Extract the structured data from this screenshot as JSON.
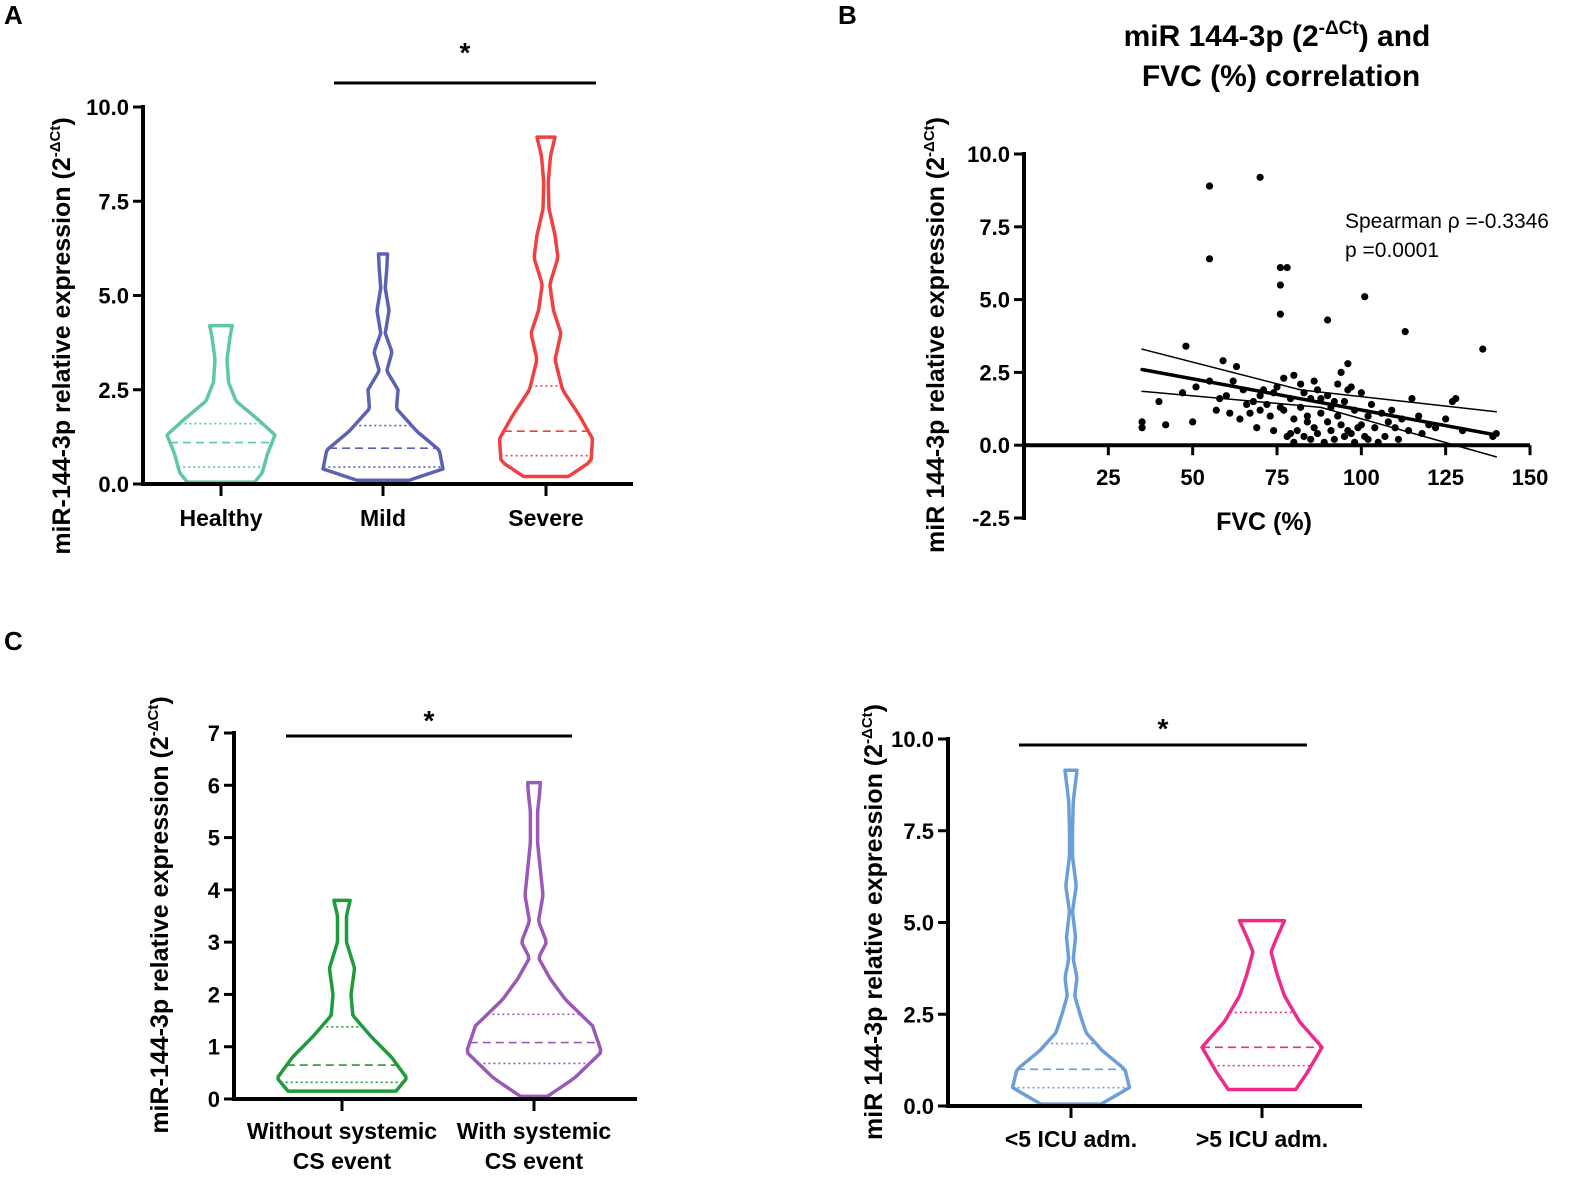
{
  "panel_labels": [
    "A",
    "B",
    "C"
  ],
  "chart_data": [
    {
      "id": "A",
      "type": "violin",
      "ylabel": "miR-144-3p relative expression (2",
      "ylabel_sup": "-ΔCt",
      "ylabel_end": ")",
      "ylim": [
        0,
        10
      ],
      "yticks": [
        "0.0",
        "2.5",
        "5.0",
        "7.5",
        "10.0"
      ],
      "ytick_values": [
        0,
        2.5,
        5,
        7.5,
        10
      ],
      "categories": [
        "Healthy",
        "Mild",
        "Severe"
      ],
      "significance": "*",
      "significance_between": [
        "Mild",
        "Severe"
      ],
      "series": [
        {
          "name": "Healthy",
          "color": "#5ec8a0",
          "min": 0.05,
          "max": 4.2,
          "median": 1.1,
          "q1": 0.45,
          "q3": 1.6,
          "density": [
            [
              0.05,
              0.45
            ],
            [
              0.3,
              0.55
            ],
            [
              0.8,
              0.62
            ],
            [
              1.3,
              0.72
            ],
            [
              1.7,
              0.5
            ],
            [
              2.2,
              0.2
            ],
            [
              2.7,
              0.1
            ],
            [
              3.3,
              0.08
            ],
            [
              3.9,
              0.12
            ],
            [
              4.2,
              0.15
            ]
          ]
        },
        {
          "name": "Mild",
          "color": "#5a62b4",
          "min": 0.1,
          "max": 6.1,
          "median": 0.95,
          "q1": 0.45,
          "q3": 1.55,
          "density": [
            [
              0.1,
              0.35
            ],
            [
              0.4,
              0.8
            ],
            [
              0.9,
              0.75
            ],
            [
              1.4,
              0.45
            ],
            [
              2.0,
              0.18
            ],
            [
              2.5,
              0.2
            ],
            [
              3.0,
              0.05
            ],
            [
              3.5,
              0.12
            ],
            [
              4.0,
              0.03
            ],
            [
              4.6,
              0.08
            ],
            [
              5.2,
              0.03
            ],
            [
              5.7,
              0.05
            ],
            [
              6.1,
              0.06
            ]
          ]
        },
        {
          "name": "Severe",
          "color": "#f04040",
          "min": 0.2,
          "max": 9.2,
          "median": 1.4,
          "q1": 0.75,
          "q3": 2.6,
          "density": [
            [
              0.2,
              0.3
            ],
            [
              0.6,
              0.6
            ],
            [
              1.2,
              0.62
            ],
            [
              1.8,
              0.45
            ],
            [
              2.5,
              0.22
            ],
            [
              3.3,
              0.12
            ],
            [
              4.0,
              0.2
            ],
            [
              4.6,
              0.1
            ],
            [
              5.3,
              0.05
            ],
            [
              6.0,
              0.16
            ],
            [
              6.6,
              0.12
            ],
            [
              7.3,
              0.04
            ],
            [
              8.0,
              0.03
            ],
            [
              8.7,
              0.06
            ],
            [
              9.2,
              0.12
            ]
          ]
        }
      ]
    },
    {
      "id": "B",
      "type": "scatter",
      "title_line1_pre": "miR 144-3p (2",
      "title_line1_sup": "-ΔCt",
      "title_line1_post": ") and",
      "title_line2": "FVC (%) correlation",
      "xlabel": "FVC (%)",
      "ylabel": "miR 144-3p relative expression (2",
      "ylabel_sup": "-ΔCt",
      "ylabel_end": ")",
      "xlim": [
        0,
        150
      ],
      "ylim": [
        -2.5,
        10
      ],
      "xticks": [
        "25",
        "50",
        "75",
        "100",
        "125",
        "150"
      ],
      "xtick_values": [
        25,
        50,
        75,
        100,
        125,
        150
      ],
      "yticks": [
        "-2.5",
        "0.0",
        "2.5",
        "5.0",
        "7.5",
        "10.0"
      ],
      "ytick_values": [
        -2.5,
        0,
        2.5,
        5,
        7.5,
        10
      ],
      "annotation_line1": "Spearman ρ =-0.3346",
      "annotation_line2": "p =0.0001",
      "regression": {
        "x": [
          35,
          140
        ],
        "y": [
          2.6,
          0.35
        ]
      },
      "ci_upper": {
        "x": [
          35,
          82,
          140
        ],
        "y": [
          3.3,
          1.9,
          1.15
        ]
      },
      "ci_lower": {
        "x": [
          35,
          88,
          140
        ],
        "y": [
          1.85,
          1.3,
          -0.4
        ]
      },
      "points": [
        [
          55,
          8.9
        ],
        [
          70,
          9.2
        ],
        [
          55,
          6.4
        ],
        [
          76,
          6.1
        ],
        [
          78,
          6.1
        ],
        [
          76,
          5.5
        ],
        [
          101,
          5.1
        ],
        [
          76,
          4.5
        ],
        [
          90,
          4.3
        ],
        [
          113,
          3.9
        ],
        [
          136,
          3.3
        ],
        [
          48,
          3.4
        ],
        [
          96,
          2.8
        ],
        [
          59,
          2.9
        ],
        [
          63,
          2.7
        ],
        [
          40,
          1.5
        ],
        [
          47,
          1.8
        ],
        [
          51,
          2.0
        ],
        [
          55,
          2.2
        ],
        [
          58,
          1.6
        ],
        [
          60,
          1.7
        ],
        [
          62,
          2.2
        ],
        [
          65,
          1.9
        ],
        [
          68,
          1.5
        ],
        [
          70,
          1.7
        ],
        [
          72,
          1.4
        ],
        [
          74,
          1.8
        ],
        [
          77,
          1.2
        ],
        [
          79,
          1.6
        ],
        [
          80,
          0.9
        ],
        [
          82,
          1.3
        ],
        [
          84,
          1.0
        ],
        [
          85,
          1.6
        ],
        [
          87,
          1.9
        ],
        [
          88,
          1.1
        ],
        [
          90,
          0.8
        ],
        [
          91,
          1.3
        ],
        [
          93,
          1.0
        ],
        [
          95,
          1.5
        ],
        [
          96,
          0.5
        ],
        [
          98,
          1.2
        ],
        [
          100,
          0.7
        ],
        [
          102,
          1.0
        ],
        [
          104,
          0.6
        ],
        [
          106,
          1.1
        ],
        [
          108,
          0.8
        ],
        [
          110,
          0.6
        ],
        [
          112,
          0.9
        ],
        [
          115,
          1.6
        ],
        [
          118,
          0.4
        ],
        [
          120,
          0.7
        ],
        [
          125,
          0.9
        ],
        [
          127,
          1.5
        ],
        [
          128,
          1.6
        ],
        [
          139,
          0.3
        ],
        [
          140,
          0.4
        ],
        [
          35,
          0.6
        ],
        [
          35,
          0.8
        ],
        [
          42,
          0.7
        ],
        [
          50,
          0.8
        ],
        [
          57,
          1.2
        ],
        [
          64,
          0.9
        ],
        [
          66,
          1.4
        ],
        [
          67,
          1.1
        ],
        [
          69,
          0.6
        ],
        [
          71,
          1.9
        ],
        [
          73,
          1.0
        ],
        [
          75,
          2.0
        ],
        [
          76,
          1.3
        ],
        [
          77,
          2.3
        ],
        [
          78,
          0.3
        ],
        [
          79,
          0.4
        ],
        [
          80,
          0.1
        ],
        [
          81,
          0.5
        ],
        [
          82,
          2.1
        ],
        [
          83,
          0.3
        ],
        [
          84,
          0.8
        ],
        [
          85,
          0.2
        ],
        [
          86,
          0.6
        ],
        [
          87,
          0.4
        ],
        [
          88,
          1.6
        ],
        [
          89,
          0.1
        ],
        [
          90,
          1.7
        ],
        [
          91,
          0.5
        ],
        [
          92,
          0.2
        ],
        [
          93,
          2.1
        ],
        [
          94,
          0.7
        ],
        [
          95,
          0.3
        ],
        [
          96,
          1.9
        ],
        [
          97,
          0.4
        ],
        [
          98,
          0.1
        ],
        [
          99,
          0.6
        ],
        [
          100,
          1.8
        ],
        [
          101,
          0.3
        ],
        [
          102,
          0.2
        ],
        [
          103,
          1.4
        ],
        [
          105,
          0.1
        ],
        [
          107,
          0.3
        ],
        [
          109,
          1.2
        ],
        [
          111,
          0.2
        ],
        [
          114,
          0.5
        ],
        [
          117,
          1.0
        ],
        [
          122,
          0.6
        ],
        [
          130,
          0.5
        ],
        [
          83,
          1.8
        ],
        [
          92,
          1.5
        ],
        [
          97,
          2.0
        ],
        [
          86,
          2.2
        ],
        [
          80,
          2.4
        ],
        [
          94,
          2.5
        ],
        [
          74,
          0.5
        ],
        [
          70,
          1.2
        ],
        [
          61,
          1.1
        ]
      ]
    },
    {
      "id": "C1",
      "type": "violin",
      "ylabel": "miR-144-3p relative expression (2",
      "ylabel_sup": "-ΔCt",
      "ylabel_end": ")",
      "ylim": [
        0,
        7
      ],
      "yticks": [
        "0",
        "1",
        "2",
        "3",
        "4",
        "5",
        "6",
        "7"
      ],
      "ytick_values": [
        0,
        1,
        2,
        3,
        4,
        5,
        6,
        7
      ],
      "categories_line1": [
        "Without systemic",
        "With systemic"
      ],
      "categories_line2": [
        "CS event",
        "CS event"
      ],
      "significance": "*",
      "series": [
        {
          "name": "Without systemic CS event",
          "color": "#1e9c3c",
          "min": 0.15,
          "max": 3.8,
          "median": 0.65,
          "q1": 0.32,
          "q3": 1.38,
          "density": [
            [
              0.15,
              0.6
            ],
            [
              0.4,
              0.72
            ],
            [
              0.8,
              0.55
            ],
            [
              1.2,
              0.32
            ],
            [
              1.6,
              0.12
            ],
            [
              2.0,
              0.1
            ],
            [
              2.5,
              0.14
            ],
            [
              3.0,
              0.05
            ],
            [
              3.5,
              0.05
            ],
            [
              3.8,
              0.09
            ]
          ]
        },
        {
          "name": "With systemic CS event",
          "color": "#9b59b6",
          "min": 0.05,
          "max": 6.05,
          "median": 1.08,
          "q1": 0.68,
          "q3": 1.62,
          "density": [
            [
              0.05,
              0.15
            ],
            [
              0.4,
              0.45
            ],
            [
              0.9,
              0.75
            ],
            [
              1.4,
              0.65
            ],
            [
              1.9,
              0.35
            ],
            [
              2.3,
              0.18
            ],
            [
              2.7,
              0.05
            ],
            [
              3.0,
              0.14
            ],
            [
              3.4,
              0.05
            ],
            [
              3.9,
              0.1
            ],
            [
              4.4,
              0.07
            ],
            [
              4.9,
              0.04
            ],
            [
              5.5,
              0.04
            ],
            [
              5.8,
              0.06
            ],
            [
              6.05,
              0.07
            ]
          ]
        }
      ]
    },
    {
      "id": "C2",
      "type": "violin",
      "ylabel": "miR 144-3p relative expression (2",
      "ylabel_sup": "-ΔCt",
      "ylabel_end": ")",
      "ylim": [
        0,
        10
      ],
      "yticks": [
        "0.0",
        "2.5",
        "5.0",
        "7.5",
        "10.0"
      ],
      "ytick_values": [
        0,
        2.5,
        5,
        7.5,
        10
      ],
      "categories": [
        "<5 ICU adm.",
        ">5 ICU adm."
      ],
      "significance": "*",
      "series": [
        {
          "name": "<5 ICU adm.",
          "color": "#6a9fd8",
          "min": 0.05,
          "max": 9.15,
          "median": 1.0,
          "q1": 0.5,
          "q3": 1.7,
          "density": [
            [
              0.05,
              0.4
            ],
            [
              0.5,
              0.78
            ],
            [
              1.0,
              0.72
            ],
            [
              1.5,
              0.42
            ],
            [
              2.0,
              0.2
            ],
            [
              2.5,
              0.12
            ],
            [
              3.0,
              0.05
            ],
            [
              3.5,
              0.08
            ],
            [
              4.0,
              0.03
            ],
            [
              4.6,
              0.06
            ],
            [
              5.3,
              0.02
            ],
            [
              6.0,
              0.07
            ],
            [
              6.8,
              0.02
            ],
            [
              7.5,
              0.02
            ],
            [
              8.3,
              0.03
            ],
            [
              9.15,
              0.08
            ]
          ]
        },
        {
          "name": ">5 ICU adm.",
          "color": "#ee2a8a",
          "min": 0.45,
          "max": 5.05,
          "median": 1.6,
          "q1": 1.1,
          "q3": 2.55,
          "density": [
            [
              0.45,
              0.45
            ],
            [
              0.9,
              0.6
            ],
            [
              1.6,
              0.8
            ],
            [
              2.3,
              0.5
            ],
            [
              3.0,
              0.3
            ],
            [
              3.6,
              0.2
            ],
            [
              4.2,
              0.12
            ],
            [
              4.6,
              0.2
            ],
            [
              5.05,
              0.3
            ]
          ]
        }
      ]
    }
  ]
}
